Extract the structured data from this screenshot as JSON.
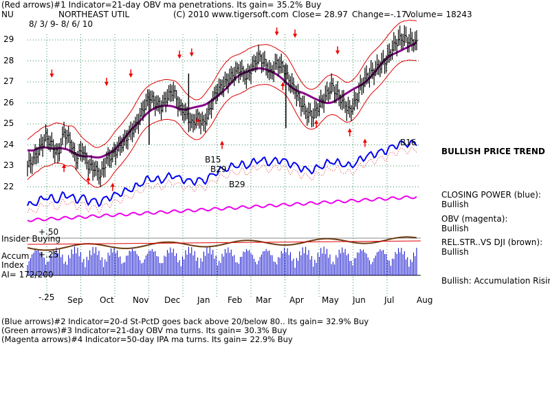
{
  "header": {
    "line1": "(Red arrows)#1 Indicator=21-day OBV ma penetrations. Its gain= 35.2% Buy",
    "symbol": "NU",
    "company": "NORTHEAST UTIL",
    "copyright": "(C) 2010 www.tigersoft.com",
    "close": "Close=  28.97",
    "change": "Change=-.17",
    "volume": "Volume= 18243",
    "date_range": "8/ 3/ 9-  8/ 6/ 10"
  },
  "signals": {
    "trend": "BULLISH PRICE TREND",
    "closing_power_label": "CLOSING POWER (blue):",
    "closing_power_value": "Bullish",
    "obv_label": "OBV (magenta):",
    "obv_value": "Bullish",
    "relstr_label": "REL.STR..VS DJI (brown):",
    "relstr_value": "Bullish",
    "accum_status": "Bullish: Accumulation Rising"
  },
  "lower_panel": {
    "insider_buying": "Insider Buying",
    "accum_label_1": "Accum",
    "accum_label_2": "Index",
    "ai_reading": "AI= 172/200",
    "tick_plus50": "+.50",
    "tick_plus25": "+.25",
    "tick_minus25": "-.25"
  },
  "annotations": {
    "b15": "B15",
    "b29a": "B29",
    "b29b": "B29",
    "b16": "B16"
  },
  "footer": {
    "line2": "(Blue arrows)#2 Indicator=20-d St-PctD goes back above 20/below 80.. Its gain= 32.9% Buy",
    "line3": "(Green arrows)#3 Indicator=21-day OBV ma turns. Its gain= 30.3% Buy",
    "line4": "(Magenta arrows)#4 Indicator=50-day IPA ma turns. Its gain= 22.9% Buy"
  },
  "colors": {
    "price_bar": "#000000",
    "bands": "#dd0000",
    "ma50": "#880088",
    "closing_power": "#0000ee",
    "obv": "#ee00ee",
    "relstr": "#6b3a10",
    "accum": "#0000cc",
    "grid": "#2e8b57",
    "arrow_red": "#ee0000"
  },
  "chart_data": {
    "type": "line",
    "title": "NORTHEAST UTIL",
    "xlabel": "",
    "ylabel": "",
    "ylim": [
      21.5,
      29.5
    ],
    "grid": true,
    "months": [
      "Sep",
      "Oct",
      "Nov",
      "Dec",
      "Jan",
      "Feb",
      "Mar",
      "Apr",
      "May",
      "Jun",
      "Jul",
      "Aug"
    ],
    "y_ticks": [
      22,
      23,
      24,
      25,
      26,
      27,
      28,
      29
    ],
    "series": [
      {
        "name": "NU",
        "x": [
          0,
          4,
          8,
          12,
          16,
          20,
          24,
          28,
          32,
          36,
          40,
          44,
          48,
          52,
          56,
          60,
          64,
          68,
          72,
          76,
          80,
          84,
          88,
          92,
          96,
          100,
          104,
          108,
          112,
          116,
          120,
          124,
          128,
          132,
          136,
          140,
          144,
          148,
          152,
          156,
          160,
          164,
          168,
          172,
          176,
          180,
          184,
          188,
          192,
          196,
          200,
          204,
          208,
          212,
          216,
          220,
          224,
          228,
          232,
          236,
          240,
          244,
          248,
          252,
          256
        ],
        "values": [
          23.0,
          23.3,
          23.8,
          24.4,
          24.0,
          23.5,
          24.6,
          24.2,
          23.3,
          23.8,
          23.0,
          22.9,
          22.5,
          23.3,
          23.5,
          23.9,
          24.2,
          24.6,
          25.0,
          25.7,
          26.3,
          26.0,
          25.8,
          26.3,
          26.6,
          25.8,
          25.5,
          25.0,
          25.3,
          25.0,
          25.7,
          26.5,
          26.8,
          27.1,
          27.4,
          27.6,
          27.2,
          27.7,
          28.2,
          27.9,
          27.4,
          27.9,
          27.7,
          27.1,
          26.6,
          26.0,
          25.5,
          25.4,
          25.9,
          26.3,
          26.8,
          26.4,
          26.0,
          25.6,
          26.1,
          26.9,
          27.3,
          27.5,
          27.8,
          28.0,
          28.6,
          29.0,
          29.1,
          28.9,
          28.97
        ]
      }
    ]
  }
}
